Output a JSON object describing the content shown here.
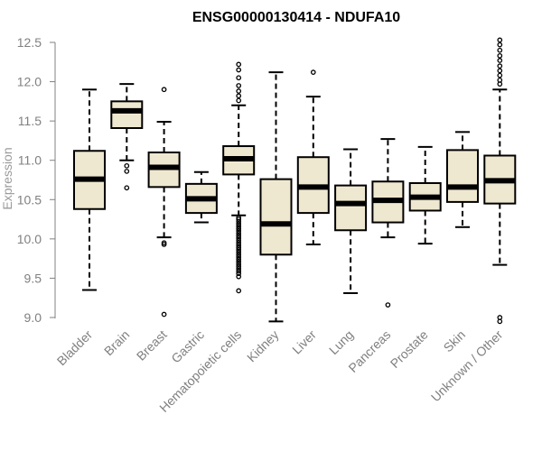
{
  "chart_data": {
    "type": "boxplot",
    "title": "ENSG00000130414 - NDUFA10",
    "xlabel": "",
    "ylabel": "Expression",
    "ylim": [
      9.0,
      12.5
    ],
    "yticks": [
      "9.0",
      "9.5",
      "10.0",
      "10.5",
      "11.0",
      "11.5",
      "12.0",
      "12.5"
    ],
    "box_fill": "#efe8d0",
    "box_stroke": "#000000",
    "categories": [
      "Bladder",
      "Brain",
      "Breast",
      "Gastric",
      "Hematopoietic cells",
      "Kidney",
      "Liver",
      "Lung",
      "Pancreas",
      "Prostate",
      "Skin",
      "Unknown / Other"
    ],
    "boxes": [
      {
        "label": "Bladder",
        "whisker_low": 9.35,
        "q1": 10.38,
        "median": 10.76,
        "q3": 11.12,
        "whisker_high": 11.9,
        "outliers": []
      },
      {
        "label": "Brain",
        "whisker_low": 11.0,
        "q1": 11.41,
        "median": 11.63,
        "q3": 11.75,
        "whisker_high": 11.97,
        "outliers": [
          10.93,
          10.86,
          10.65
        ]
      },
      {
        "label": "Breast",
        "whisker_low": 10.02,
        "q1": 10.66,
        "median": 10.91,
        "q3": 11.1,
        "whisker_high": 11.49,
        "outliers": [
          11.9,
          9.95,
          9.93,
          9.04
        ]
      },
      {
        "label": "Gastric",
        "whisker_low": 10.21,
        "q1": 10.33,
        "median": 10.51,
        "q3": 10.7,
        "whisker_high": 10.85,
        "outliers": []
      },
      {
        "label": "Hematopoietic cells",
        "whisker_low": 10.3,
        "q1": 10.82,
        "median": 11.02,
        "q3": 11.18,
        "whisker_high": 11.7,
        "outliers": [
          12.22,
          12.15,
          12.05,
          11.95,
          11.88,
          11.82,
          11.76,
          10.27,
          10.25,
          10.22,
          10.19,
          10.16,
          10.13,
          10.1,
          10.07,
          10.04,
          10.01,
          9.98,
          9.95,
          9.92,
          9.89,
          9.86,
          9.83,
          9.8,
          9.77,
          9.74,
          9.71,
          9.68,
          9.65,
          9.62,
          9.59,
          9.56,
          9.52,
          9.34
        ]
      },
      {
        "label": "Kidney",
        "whisker_low": 8.95,
        "q1": 9.8,
        "median": 10.19,
        "q3": 10.76,
        "whisker_high": 12.12,
        "outliers": []
      },
      {
        "label": "Liver",
        "whisker_low": 9.93,
        "q1": 10.33,
        "median": 10.66,
        "q3": 11.04,
        "whisker_high": 11.81,
        "outliers": [
          12.12
        ]
      },
      {
        "label": "Lung",
        "whisker_low": 9.31,
        "q1": 10.11,
        "median": 10.45,
        "q3": 10.68,
        "whisker_high": 11.14,
        "outliers": []
      },
      {
        "label": "Pancreas",
        "whisker_low": 10.02,
        "q1": 10.21,
        "median": 10.49,
        "q3": 10.73,
        "whisker_high": 11.27,
        "outliers": [
          9.16
        ]
      },
      {
        "label": "Prostate",
        "whisker_low": 9.94,
        "q1": 10.36,
        "median": 10.53,
        "q3": 10.71,
        "whisker_high": 11.17,
        "outliers": []
      },
      {
        "label": "Skin",
        "whisker_low": 10.15,
        "q1": 10.47,
        "median": 10.66,
        "q3": 11.13,
        "whisker_high": 11.36,
        "outliers": []
      },
      {
        "label": "Unknown / Other",
        "whisker_low": 9.67,
        "q1": 10.45,
        "median": 10.74,
        "q3": 11.06,
        "whisker_high": 11.9,
        "outliers": [
          12.53,
          12.47,
          12.4,
          12.33,
          12.27,
          12.2,
          12.14,
          12.08,
          12.02,
          11.97,
          9.0,
          8.95
        ]
      }
    ]
  }
}
